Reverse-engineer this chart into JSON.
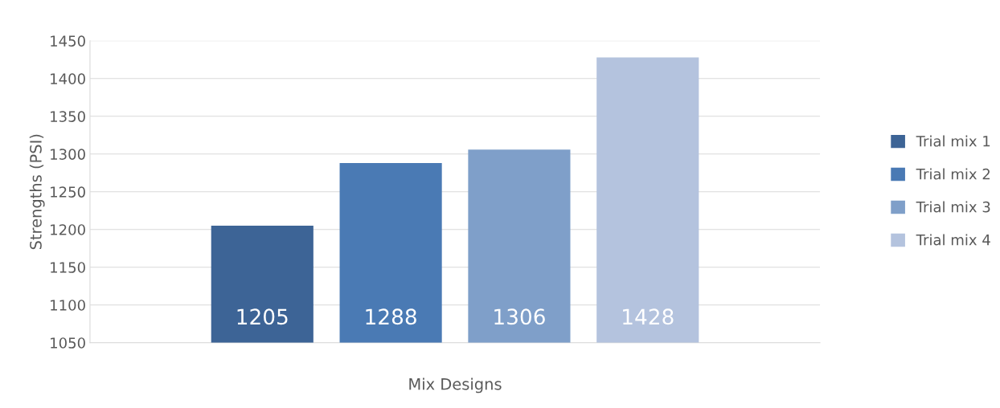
{
  "chart_data": {
    "type": "bar",
    "xlabel": "Mix Designs",
    "ylabel": "Strengths (PSI)",
    "categories": [
      null
    ],
    "series": [
      {
        "name": "Trial mix 1",
        "color": "#3d6496",
        "values": [
          1205
        ]
      },
      {
        "name": "Trial mix 2",
        "color": "#4a7ab4",
        "values": [
          1288
        ]
      },
      {
        "name": "Trial mix 3",
        "color": "#7f9fc9",
        "values": [
          1306
        ]
      },
      {
        "name": "Trial mix 4",
        "color": "#b4c3de",
        "values": [
          1428
        ]
      }
    ],
    "ylim": [
      1050,
      1450
    ],
    "yticks": [
      1050,
      1100,
      1150,
      1200,
      1250,
      1300,
      1350,
      1400,
      1450
    ],
    "grid": "y",
    "legend": "right",
    "data_labels": true
  }
}
